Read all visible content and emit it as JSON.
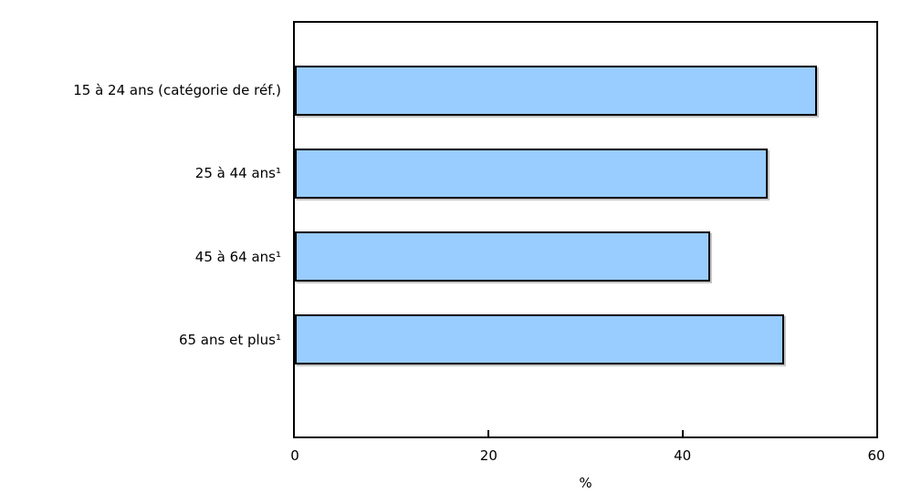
{
  "chart_data": {
    "type": "bar",
    "orientation": "horizontal",
    "title": "",
    "xlabel": "%",
    "ylabel": "",
    "categories": [
      "15 à 24 ans (catégorie de réf.)",
      "25 à 44 ans¹",
      "45 à 64 ans¹",
      "65 ans et plus¹"
    ],
    "values": [
      53.9,
      48.8,
      42.9,
      50.5
    ],
    "xlim": [
      0,
      60
    ],
    "xticks": [
      0,
      20,
      40,
      60
    ],
    "grid": false,
    "legend_position": "none",
    "bar_fill_color": "#99CCFF",
    "bar_border_color": "#000000",
    "axis_color": "#000000",
    "text_color": "#000000",
    "background_color": "#FFFFFF"
  }
}
